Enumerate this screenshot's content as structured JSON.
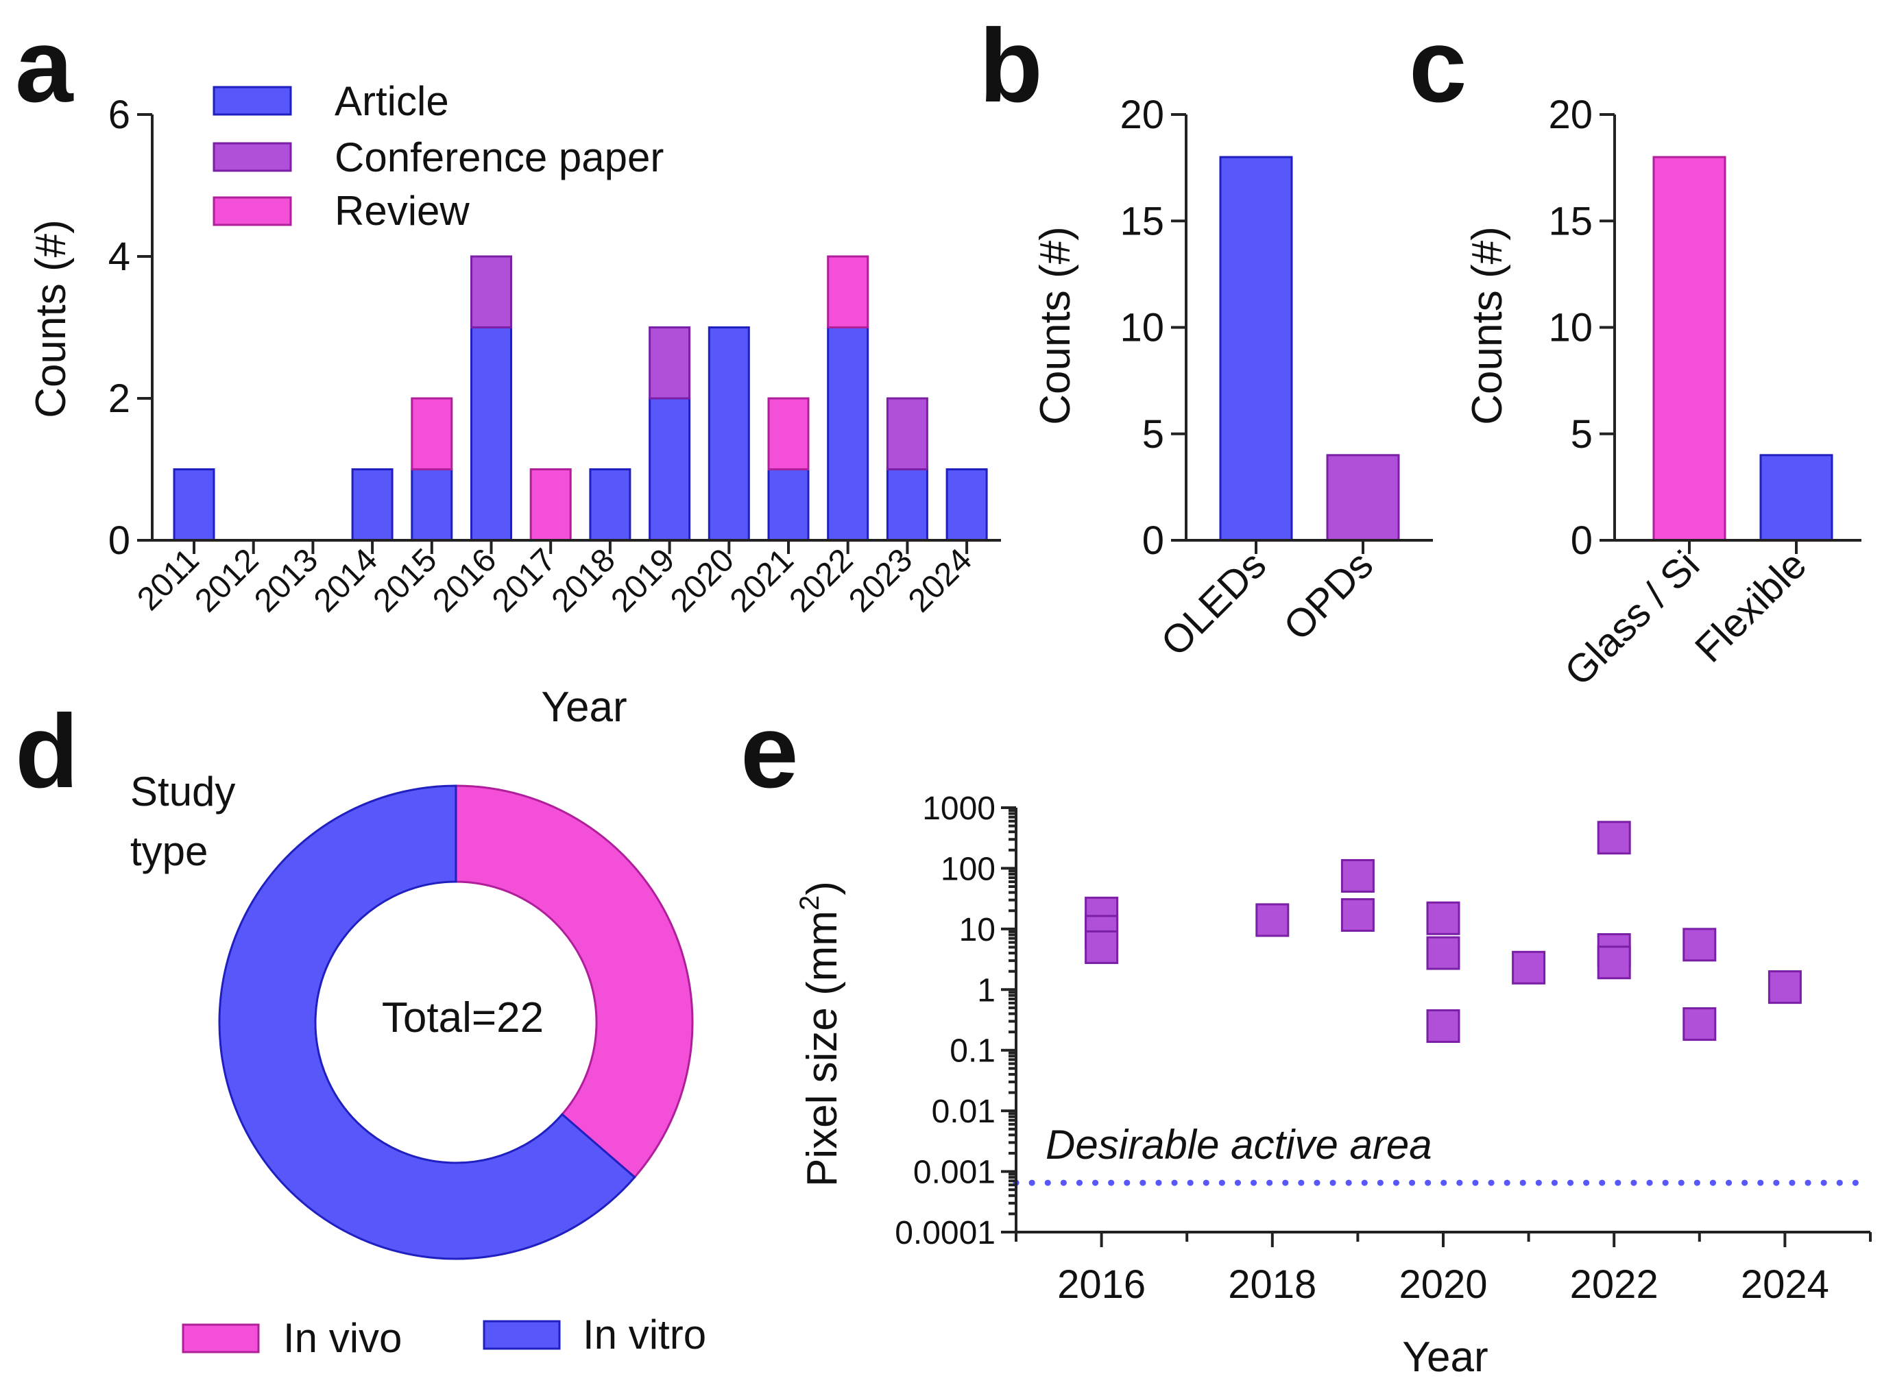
{
  "colors": {
    "article": "#5757fa",
    "conference": "#b04fd7",
    "review": "#f44fd9",
    "edge_blue": "#2020c0",
    "edge_purple": "#7a1fa6",
    "edge_pink": "#b01f9a",
    "dotted_line": "#5757fa"
  },
  "chart_data": [
    {
      "id": "a",
      "panel_label": "a",
      "type": "bar",
      "stacked": true,
      "categories": [
        "2011",
        "2012",
        "2013",
        "2014",
        "2015",
        "2016",
        "2017",
        "2018",
        "2019",
        "2020",
        "2021",
        "2022",
        "2023",
        "2024"
      ],
      "series": [
        {
          "name": "Article",
          "values": [
            1,
            0,
            0,
            1,
            1,
            3,
            0,
            1,
            2,
            3,
            1,
            3,
            1,
            1
          ]
        },
        {
          "name": "Conference paper",
          "values": [
            0,
            0,
            0,
            0,
            0,
            1,
            0,
            0,
            1,
            0,
            0,
            0,
            1,
            0
          ]
        },
        {
          "name": "Review",
          "values": [
            0,
            0,
            0,
            0,
            1,
            0,
            1,
            0,
            0,
            0,
            1,
            1,
            0,
            0
          ]
        }
      ],
      "xlabel": "Year",
      "ylabel": "Counts  (#)",
      "ylim": [
        0,
        6
      ],
      "yticks": [
        "0",
        "2",
        "4",
        "6"
      ],
      "legend": "top-left"
    },
    {
      "id": "b",
      "panel_label": "b",
      "type": "bar",
      "categories": [
        "OLEDs",
        "OPDs"
      ],
      "values": [
        18,
        4
      ],
      "ylabel": "Counts (#)",
      "ylim": [
        0,
        20
      ],
      "yticks": [
        "0",
        "5",
        "10",
        "15",
        "20"
      ]
    },
    {
      "id": "c",
      "panel_label": "c",
      "type": "bar",
      "categories": [
        "Glass / Si",
        "Flexible"
      ],
      "values": [
        18,
        4
      ],
      "ylabel": "Counts (#)",
      "ylim": [
        0,
        20
      ],
      "yticks": [
        "0",
        "5",
        "10",
        "15",
        "20"
      ]
    },
    {
      "id": "d",
      "panel_label": "d",
      "type": "pie",
      "donut": true,
      "title_lines": [
        "Study",
        "type"
      ],
      "center_text": "Total=22",
      "labels": [
        "In vivo",
        "In vitro"
      ],
      "values": [
        8,
        14
      ],
      "legend": "bottom"
    },
    {
      "id": "e",
      "panel_label": "e",
      "type": "scatter",
      "yscale": "log",
      "x": [
        2016,
        2016,
        2016,
        2018,
        2019,
        2019,
        2020,
        2020,
        2020,
        2021,
        2022,
        2022,
        2022,
        2023,
        2023,
        2024
      ],
      "y": [
        18,
        9,
        5,
        14,
        75,
        17,
        15,
        4,
        0.25,
        2.3,
        320,
        4.5,
        2.8,
        5.5,
        0.27,
        1.1
      ],
      "xlabel": "Year",
      "ylabel_main": "Pixel size (mm",
      "ylabel_sup": "2",
      "ylabel_end": ")",
      "xlim": [
        2015,
        2025
      ],
      "xticks": [
        "2016",
        "2018",
        "2020",
        "2022",
        "2024"
      ],
      "ylim": [
        0.0001,
        1000
      ],
      "yticks": [
        "0.0001",
        "0.001",
        "0.01",
        "0.1",
        "1",
        "10",
        "100",
        "1000"
      ],
      "reference_line": {
        "y": 0.00065,
        "label": "Desirable active area",
        "style": "dotted"
      }
    }
  ]
}
